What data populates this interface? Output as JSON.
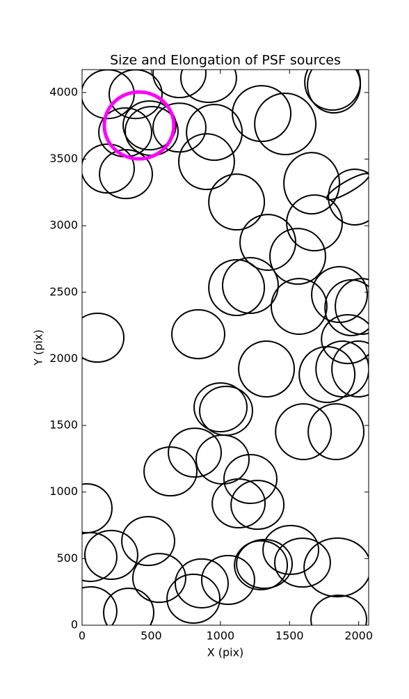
{
  "chart_data": {
    "type": "ellipse",
    "title": "Size and Elongation of PSF sources",
    "x_label": "X (pix)",
    "y_label": "Y (pix)",
    "xlim": [
      0,
      2072
    ],
    "ylim": [
      0,
      4172
    ],
    "xticks": [
      0,
      500,
      1000,
      1500,
      2000
    ],
    "yticks": [
      0,
      500,
      1000,
      1500,
      2000,
      2500,
      3000,
      3500,
      4000
    ],
    "series": [
      {
        "color": "#000000",
        "x": [
          186,
          387,
          704,
          915,
          1811,
          1821,
          312,
          488,
          704,
          503,
          900,
          956,
          1298,
          1469,
          186,
          317,
          1117,
          1660,
          1972,
          1922,
          1680,
          1343,
          1559,
          1117,
          1217,
          1569,
          1861,
          1947,
          2022,
          111,
          840,
          1922,
          1333,
          1771,
          1882,
          1997,
          1001,
          1041,
          1600,
          1836,
          815,
          1016,
          1217,
          639,
          1132,
          1268,
          35,
          478,
          60,
          211,
          558,
          865,
          805,
          1056,
          1293,
          1318,
          1509,
          1594,
          1846,
          60,
          337,
          1856
        ],
        "values": [
          3988,
          3988,
          4145,
          4109,
          4077,
          4056,
          3701,
          3753,
          3737,
          3711,
          3481,
          3701,
          3842,
          3764,
          3429,
          3387,
          3178,
          3319,
          3215,
          3293,
          3021,
          2875,
          2770,
          2535,
          2551,
          2394,
          2483,
          2384,
          2394,
          2159,
          2185,
          2148,
          1924,
          1882,
          1924,
          1924,
          1636,
          1610,
          1453,
          1453,
          1296,
          1244,
          1098,
          1155,
          915,
          904,
          878,
          632,
          512,
          528,
          355,
          314,
          199,
          340,
          450,
          460,
          565,
          470,
          434,
          105,
          94,
          42
        ],
        "width": [
          382,
          382,
          382,
          402,
          402,
          382,
          382,
          382,
          382,
          382,
          402,
          402,
          422,
          442,
          382,
          382,
          402,
          402,
          382,
          352,
          402,
          402,
          402,
          402,
          402,
          402,
          402,
          382,
          382,
          382,
          382,
          382,
          402,
          402,
          382,
          382,
          382,
          382,
          402,
          402,
          382,
          382,
          382,
          382,
          382,
          382,
          362,
          382,
          382,
          382,
          382,
          382,
          382,
          382,
          382,
          402,
          402,
          402,
          482,
          382,
          362,
          402
        ],
        "height": [
          366,
          366,
          366,
          366,
          418,
          418,
          366,
          366,
          366,
          366,
          418,
          418,
          418,
          460,
          366,
          366,
          418,
          460,
          418,
          84,
          418,
          418,
          418,
          418,
          418,
          418,
          418,
          418,
          418,
          366,
          366,
          366,
          418,
          418,
          418,
          418,
          366,
          366,
          418,
          418,
          366,
          366,
          366,
          366,
          366,
          366,
          366,
          366,
          366,
          366,
          366,
          366,
          366,
          366,
          366,
          366,
          366,
          366,
          440,
          366,
          366,
          366
        ],
        "angle": [
          0,
          0,
          0,
          0,
          0,
          0,
          0,
          0,
          0,
          0,
          0,
          0,
          0,
          0,
          0,
          0,
          0,
          0,
          0,
          30,
          0,
          0,
          0,
          0,
          0,
          0,
          0,
          0,
          0,
          0,
          0,
          0,
          0,
          0,
          0,
          0,
          0,
          0,
          0,
          0,
          0,
          0,
          0,
          0,
          0,
          0,
          0,
          0,
          0,
          0,
          0,
          0,
          0,
          0,
          0,
          0,
          0,
          0,
          0,
          0,
          0,
          0
        ]
      },
      {
        "color": "#ff00ff",
        "x": [
          412
        ],
        "values": [
          3753
        ],
        "width": [
          503
        ],
        "height": [
          502
        ],
        "angle": [
          0
        ]
      }
    ]
  }
}
